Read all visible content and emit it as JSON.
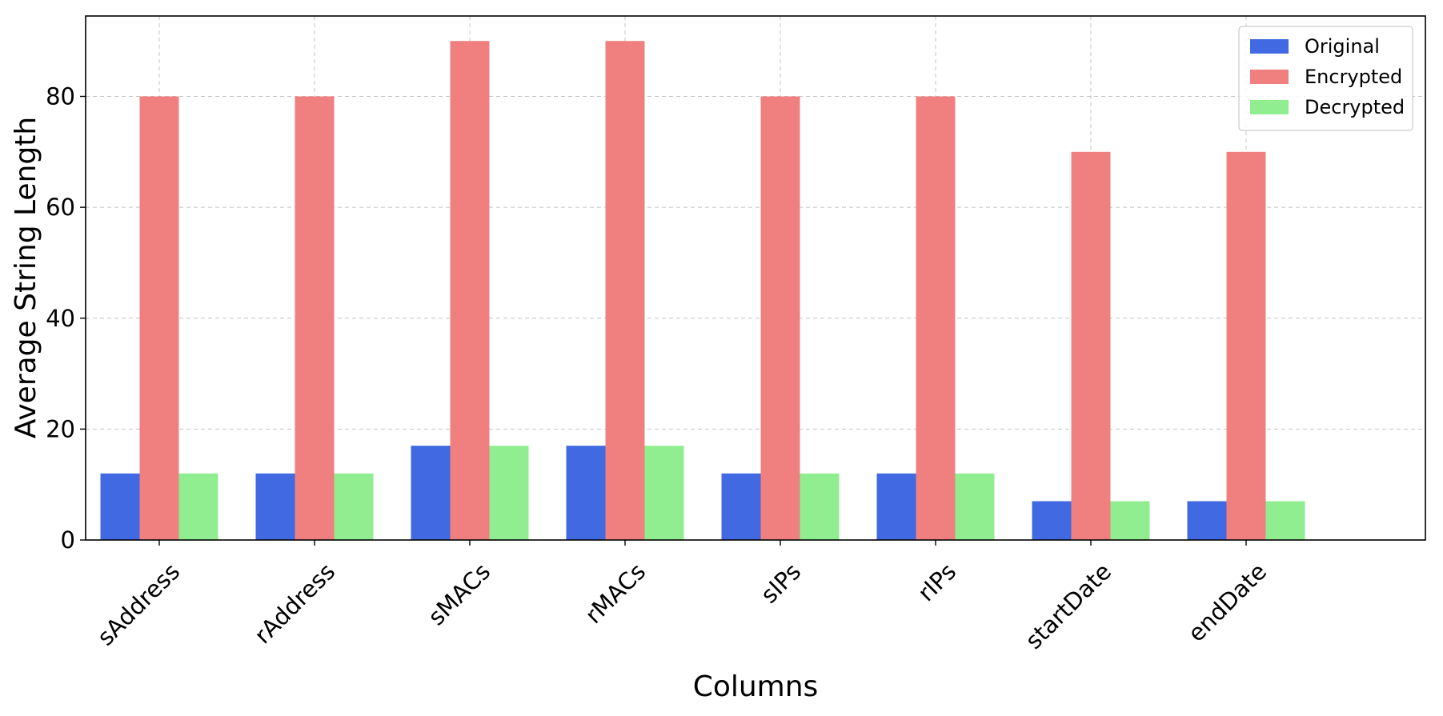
{
  "chart_data": {
    "type": "bar",
    "title": "",
    "xlabel": "Columns",
    "ylabel": "Average String Length",
    "categories": [
      "sAddress",
      "rAddress",
      "sMACs",
      "rMACs",
      "sIPs",
      "rIPs",
      "startDate",
      "endDate"
    ],
    "series": [
      {
        "name": "Original",
        "color": "#4169E1",
        "values": [
          12,
          12,
          17,
          17,
          12,
          12,
          7,
          7
        ]
      },
      {
        "name": "Encrypted",
        "color": "#F08080",
        "values": [
          80,
          80,
          90,
          90,
          80,
          80,
          70,
          70
        ]
      },
      {
        "name": "Decrypted",
        "color": "#90EE90",
        "values": [
          12,
          12,
          17,
          17,
          12,
          12,
          7,
          7
        ]
      }
    ],
    "ylim": [
      0,
      94.5
    ],
    "yticks": [
      0,
      20,
      40,
      60,
      80
    ],
    "grid": true,
    "legend_position": "top-right"
  }
}
